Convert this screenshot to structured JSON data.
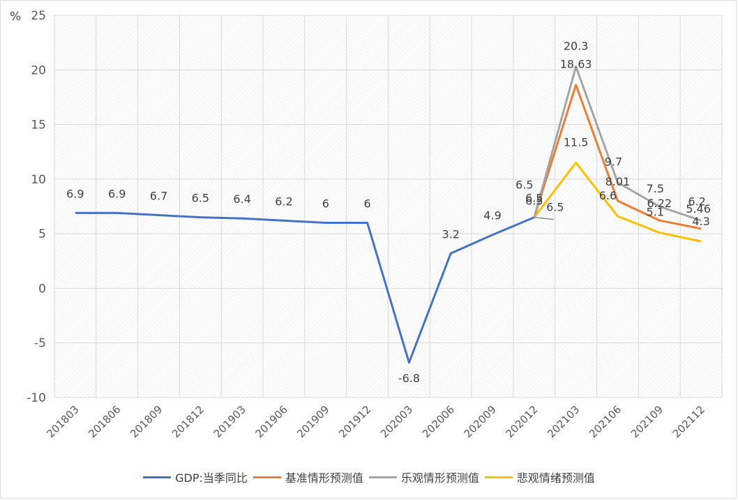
{
  "chart_data": {
    "type": "line",
    "unit_label": "%",
    "categories": [
      "201803",
      "201806",
      "201809",
      "201812",
      "201903",
      "201906",
      "201909",
      "201912",
      "202003",
      "202006",
      "202009",
      "202012",
      "202103",
      "202106",
      "202109",
      "202112"
    ],
    "ylim": [
      -10,
      25
    ],
    "yticks": [
      -10,
      -5,
      0,
      5,
      10,
      15,
      20,
      25
    ],
    "grid": true,
    "legend_position": "bottom",
    "series": [
      {
        "name": "GDP:当季同比",
        "color": "#4472C4",
        "values": [
          6.9,
          6.9,
          6.7,
          6.5,
          6.4,
          6.2,
          6,
          6,
          -6.8,
          3.2,
          4.9,
          6.5,
          null,
          null,
          null,
          null
        ],
        "labels": [
          "6.9",
          "6.9",
          "6.7",
          "6.5",
          "6.4",
          "6.2",
          "6",
          "6",
          "-6.8",
          "3.2",
          "4.9",
          "6.5",
          null,
          null,
          null,
          null
        ]
      },
      {
        "name": "基准情形预测值",
        "color": "#ED7D31",
        "values": [
          null,
          null,
          null,
          null,
          null,
          null,
          null,
          null,
          null,
          null,
          null,
          6.5,
          18.63,
          8.01,
          6.22,
          5.46
        ],
        "labels": [
          null,
          null,
          null,
          null,
          null,
          null,
          null,
          null,
          null,
          null,
          null,
          "6.5",
          "18.63",
          "8.01",
          "6.22",
          "5.46"
        ]
      },
      {
        "name": "乐观情形预测值",
        "color": "#A5A5A5",
        "values": [
          null,
          null,
          null,
          null,
          null,
          null,
          null,
          null,
          null,
          null,
          null,
          6.5,
          20.3,
          9.7,
          7.5,
          6.2
        ],
        "labels": [
          null,
          null,
          null,
          null,
          null,
          null,
          null,
          null,
          null,
          null,
          null,
          "6.5",
          "20.3",
          "9.7",
          "7.5",
          "6.2"
        ]
      },
      {
        "name": "悲观情绪预测值",
        "color": "#FFC000",
        "values": [
          null,
          null,
          null,
          null,
          null,
          null,
          null,
          null,
          null,
          null,
          null,
          6.5,
          11.5,
          6.6,
          5.1,
          4.3
        ],
        "labels": [
          null,
          null,
          null,
          null,
          null,
          null,
          null,
          null,
          null,
          null,
          null,
          "6.5",
          "11.5",
          "6.6",
          "5.1",
          "4.3"
        ]
      }
    ]
  }
}
